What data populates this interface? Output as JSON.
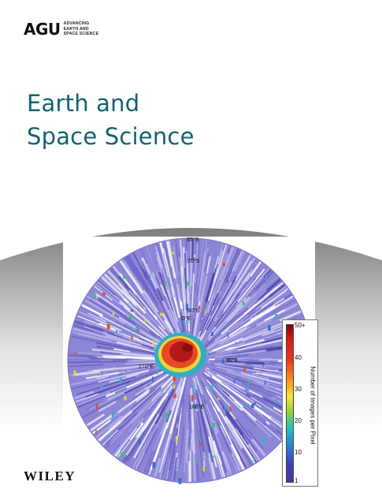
{
  "masthead": {
    "logo": "AGU",
    "tagline": [
      "ADVANCING",
      "EARTH AND",
      "SPACE SCIENCE"
    ]
  },
  "journal": {
    "title_line1": "Earth and",
    "title_line2": "Space Science"
  },
  "cover_image": {
    "latitude_labels": [
      "65°S",
      "70°S",
      "80°S"
    ],
    "longitude_labels": [
      "0°E",
      "90°E",
      "180°E",
      "270°E"
    ],
    "colorbar": {
      "ticks": [
        "50+",
        "40",
        "30",
        "20",
        "10",
        "1"
      ],
      "label": "Number of Images per Pixel"
    }
  },
  "publisher": "WILEY",
  "colors": {
    "title": "#14616f",
    "map_base": "#8c86d6",
    "band_gray": "#8a8a8a"
  }
}
